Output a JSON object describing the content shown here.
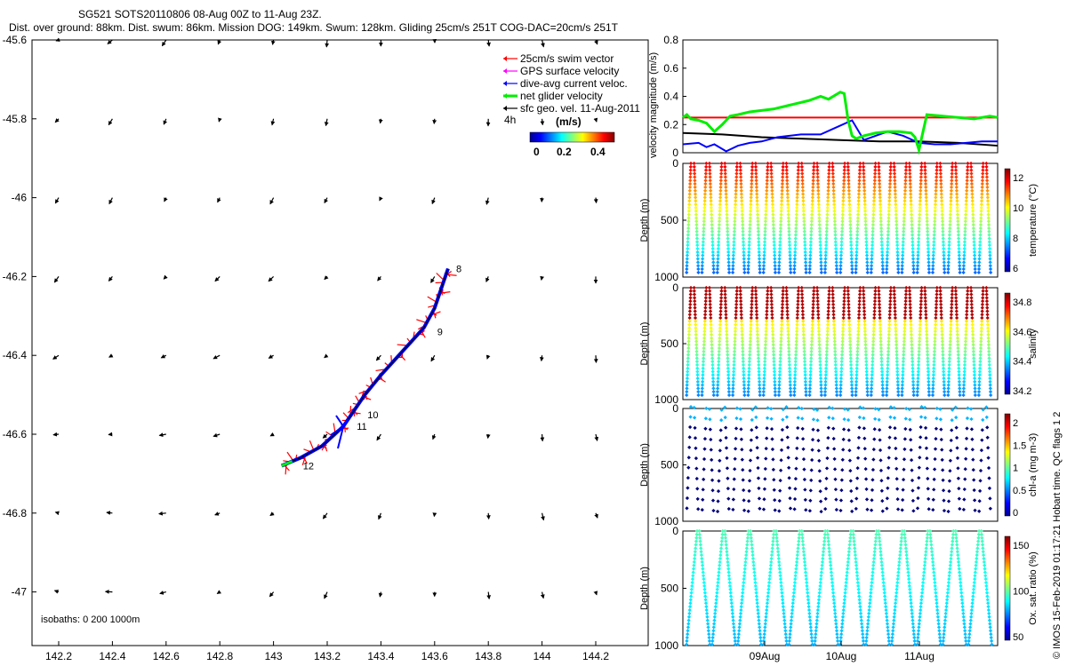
{
  "header": {
    "title_line1": "SG521 SOTS20110806 08-Aug 00Z to 11-Aug 23Z.",
    "title_line2": "Dist. over ground: 88km. Dist. swum: 86km. Mission DOG: 149km. Swum: 128km. Gliding 25cm/s 251T COG-DAC=20cm/s 251T"
  },
  "side_text": "© IMOS 15-Feb-2019 01:17:21 Hobart time. QC flags 1  2",
  "colors": {
    "swim": "#ff0000",
    "gps": "#ff00ff",
    "dac": "#0000ff",
    "net": "#00ee00",
    "sfc": "#000000"
  },
  "chart_data": [
    {
      "id": "map",
      "type": "scatter",
      "x_ticks": [
        "142.2",
        "142.4",
        "142.6",
        "142.8",
        "143",
        "143.2",
        "143.4",
        "143.6",
        "143.8",
        "144",
        "144.2"
      ],
      "y_ticks": [
        "-45.6",
        "-45.8",
        "-46",
        "-46.2",
        "-46.4",
        "-46.6",
        "-46.8",
        "-47"
      ],
      "xlim": [
        142.1,
        144.35
      ],
      "ylim": [
        -47.15,
        -45.6
      ],
      "legend": {
        "items": [
          {
            "label": "25cm/s swim vector",
            "color": "#ff0000"
          },
          {
            "label": "GPS surface velocity",
            "color": "#ff00ff"
          },
          {
            "label": "dive-avg current veloc.",
            "color": "#0000ff"
          },
          {
            "label": "net glider velocity",
            "color": "#00ee00"
          },
          {
            "label": "sfc geo. vel. 11-Aug-2011",
            "color": "#000000"
          }
        ],
        "interval": "4h",
        "cbar_label": "(m/s)",
        "cbar_ticks": [
          "0",
          "0.2",
          "0.4"
        ],
        "placement": "top-right"
      },
      "track": [
        [
          143.03,
          -46.68
        ],
        [
          143.1,
          -46.66
        ],
        [
          143.18,
          -46.63
        ],
        [
          143.26,
          -46.58
        ],
        [
          143.3,
          -46.54
        ],
        [
          143.34,
          -46.5
        ],
        [
          143.4,
          -46.45
        ],
        [
          143.48,
          -46.39
        ],
        [
          143.56,
          -46.33
        ],
        [
          143.6,
          -46.28
        ],
        [
          143.63,
          -46.22
        ],
        [
          143.65,
          -46.18
        ]
      ],
      "day_labels": [
        {
          "text": "8",
          "lon": 143.67,
          "lat": -46.18
        },
        {
          "text": "9",
          "lon": 143.6,
          "lat": -46.34
        },
        {
          "text": "10",
          "lon": 143.34,
          "lat": -46.55
        },
        {
          "text": "11",
          "lon": 143.3,
          "lat": -46.58
        },
        {
          "text": "12",
          "lon": 143.1,
          "lat": -46.68
        }
      ],
      "isobaths_label": "isobaths: 0   200   1000m"
    },
    {
      "id": "velocity",
      "type": "line",
      "ylabel": "velocity magnitude (m/s)",
      "ylim": [
        0,
        0.8
      ],
      "y_ticks": [
        "0",
        "0.2",
        "0.4",
        "0.6",
        "0.8"
      ],
      "x_days": [
        0,
        4
      ],
      "series": [
        {
          "name": "swim",
          "color": "#ff0000",
          "x": [
            0,
            4
          ],
          "y": [
            0.25,
            0.25
          ]
        },
        {
          "name": "sfc",
          "color": "#000000",
          "x": [
            0,
            0.5,
            1,
            1.5,
            2,
            2.5,
            3,
            3.5,
            4
          ],
          "y": [
            0.14,
            0.13,
            0.11,
            0.1,
            0.09,
            0.08,
            0.08,
            0.07,
            0.05
          ]
        },
        {
          "name": "dac",
          "color": "#0000ff",
          "x": [
            0,
            0.2,
            0.3,
            0.4,
            0.55,
            0.7,
            0.85,
            1.0,
            1.2,
            1.5,
            1.75,
            1.95,
            2.15,
            2.3,
            2.45,
            2.6,
            2.8,
            3.0,
            3.2,
            3.4,
            3.6,
            3.8,
            4.0
          ],
          "y": [
            0.06,
            0.07,
            0.04,
            0.06,
            0.01,
            0.05,
            0.07,
            0.08,
            0.11,
            0.13,
            0.13,
            0.18,
            0.23,
            0.09,
            0.12,
            0.15,
            0.12,
            0.07,
            0.06,
            0.06,
            0.07,
            0.08,
            0.08
          ]
        },
        {
          "name": "net",
          "color": "#00ee00",
          "x": [
            0,
            0.05,
            0.1,
            0.2,
            0.3,
            0.4,
            0.5,
            0.6,
            0.7,
            0.85,
            1.0,
            1.15,
            1.3,
            1.45,
            1.6,
            1.75,
            1.85,
            2.0,
            2.05,
            2.1,
            2.15,
            2.2,
            2.3,
            2.45,
            2.6,
            2.75,
            2.9,
            2.95,
            3.0,
            3.1,
            3.3,
            3.5,
            3.7,
            3.8,
            3.9,
            4.0
          ],
          "y": [
            0.25,
            0.27,
            0.24,
            0.23,
            0.21,
            0.15,
            0.2,
            0.26,
            0.27,
            0.29,
            0.3,
            0.31,
            0.33,
            0.35,
            0.37,
            0.4,
            0.38,
            0.43,
            0.42,
            0.23,
            0.12,
            0.1,
            0.12,
            0.14,
            0.15,
            0.15,
            0.14,
            0.11,
            0.02,
            0.27,
            0.26,
            0.25,
            0.24,
            0.25,
            0.26,
            0.25
          ]
        }
      ]
    },
    {
      "id": "temperature",
      "type": "scatter",
      "ylabel": "Depth (m)",
      "cbar_label": "temperature (°C)",
      "cbar_ticks": [
        "6",
        "8",
        "10",
        "12"
      ],
      "y_ticks": [
        "0",
        "500",
        "1000"
      ],
      "ylim": [
        0,
        1000
      ]
    },
    {
      "id": "salinity",
      "type": "scatter",
      "ylabel": "Depth (m)",
      "cbar_label": "salinity",
      "cbar_ticks": [
        "34.2",
        "34.4",
        "34.6",
        "34.8"
      ],
      "y_ticks": [
        "0",
        "500",
        "1000"
      ],
      "ylim": [
        0,
        1000
      ]
    },
    {
      "id": "chla",
      "type": "scatter",
      "ylabel": "Depth (m)",
      "cbar_label": "chl-a (mg m-3)",
      "cbar_ticks": [
        "0",
        "0.5",
        "1",
        "1.5",
        "2"
      ],
      "y_ticks": [
        "0",
        "500",
        "1000"
      ],
      "ylim": [
        0,
        1000
      ]
    },
    {
      "id": "oxygen",
      "type": "scatter",
      "ylabel": "Depth (m)",
      "cbar_label": "Ox. sat. ratio (%)",
      "cbar_ticks": [
        "50",
        "100",
        "150"
      ],
      "y_ticks": [
        "0",
        "500",
        "1000"
      ],
      "ylim": [
        0,
        1000
      ],
      "x_ticks": [
        "09Aug",
        "10Aug",
        "11Aug"
      ]
    }
  ]
}
